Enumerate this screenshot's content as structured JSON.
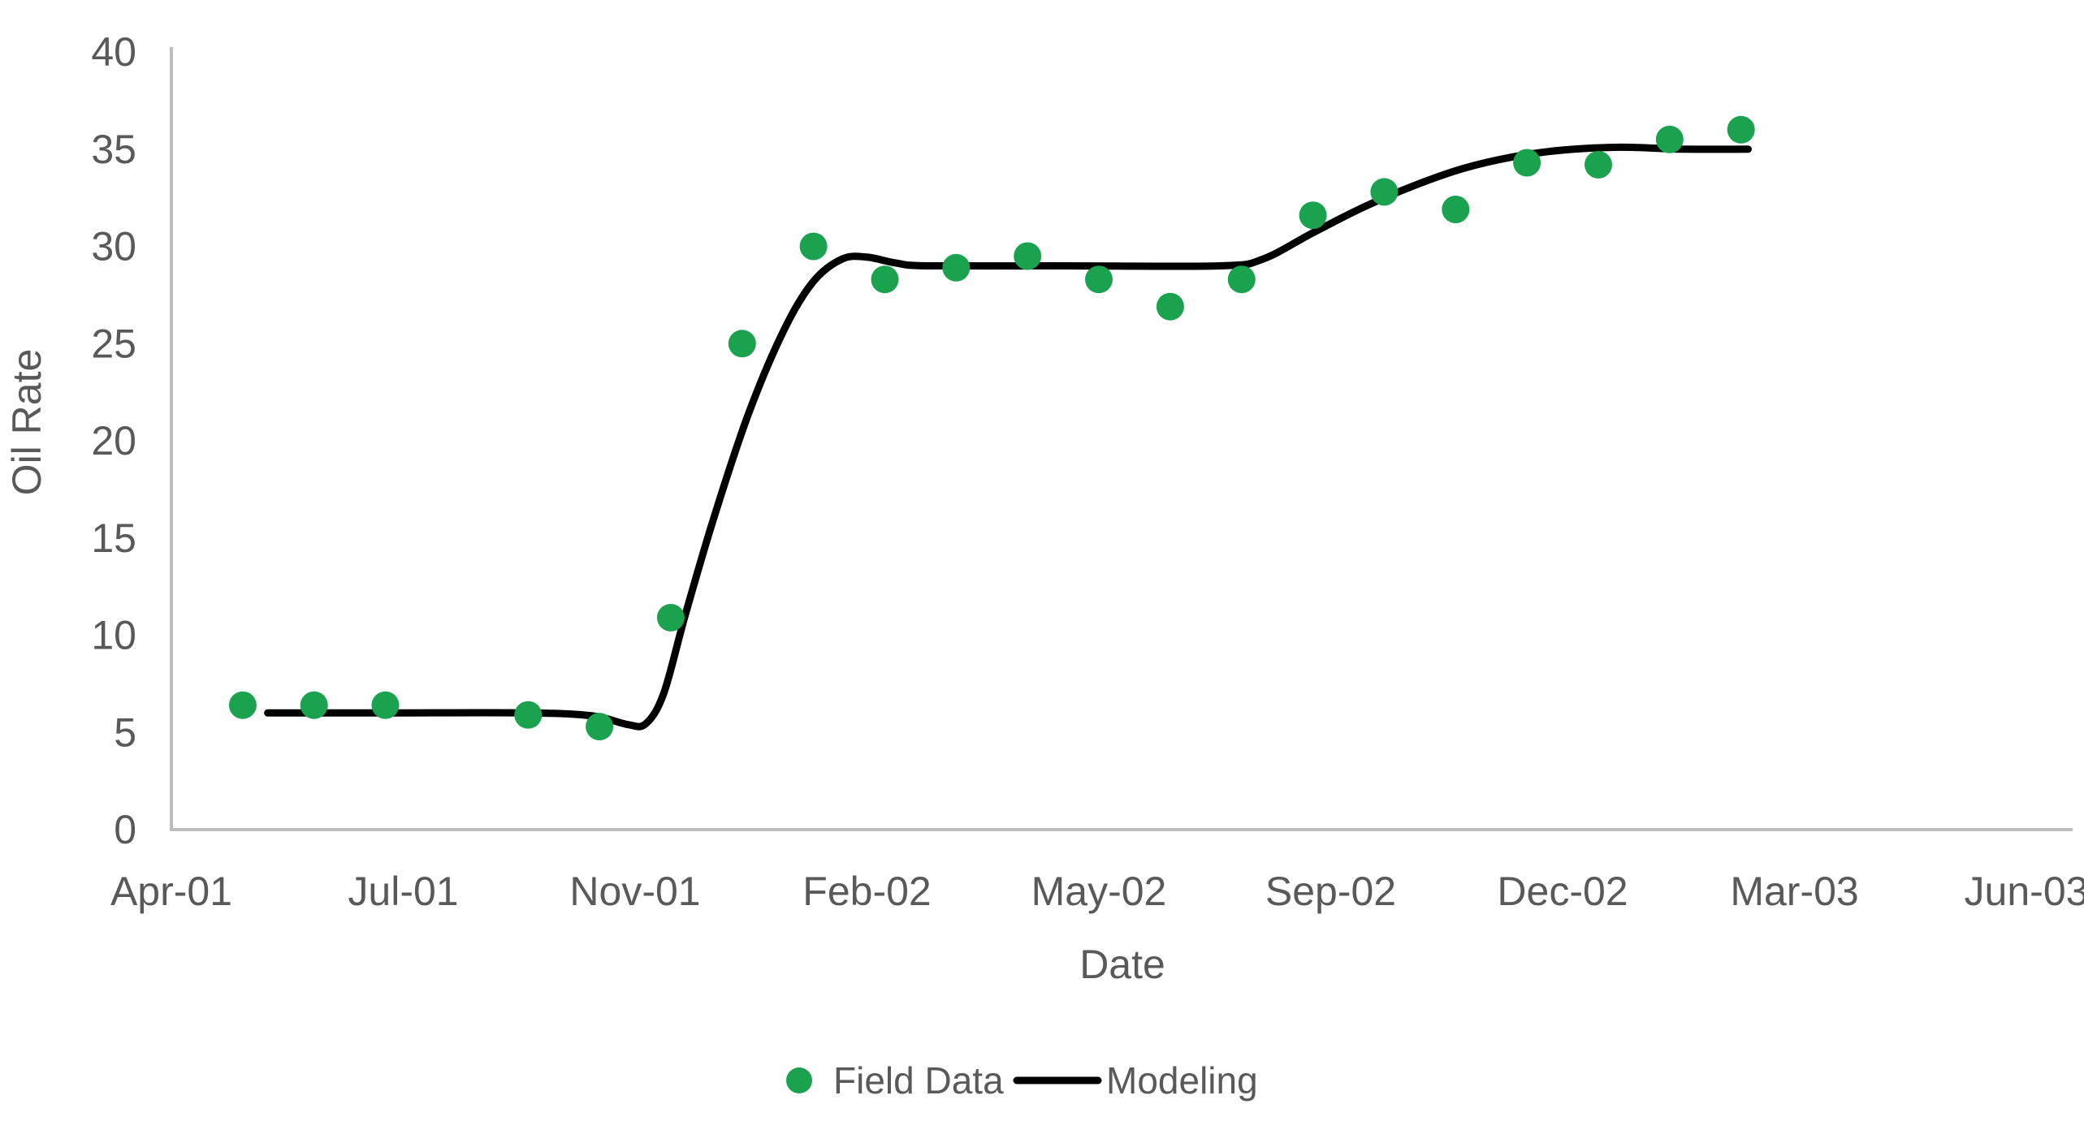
{
  "chart_data": {
    "type": "scatter",
    "title": "",
    "xlabel": "Date",
    "ylabel": "Oil Rate",
    "legend_position": "bottom",
    "grid": false,
    "colors": {
      "field_data": "#1aa24e",
      "modeling": "#000000",
      "axis_line": "#bdbdbd",
      "text": "#595959"
    },
    "x_axis": {
      "tick_labels": [
        "Apr-01",
        "Jul-01",
        "Nov-01",
        "Feb-02",
        "May-02",
        "Sep-02",
        "Dec-02",
        "Mar-03",
        "Jun-03"
      ],
      "tick_month_offsets": [
        0,
        3,
        7,
        10,
        13,
        17,
        20,
        23,
        26
      ]
    },
    "y_axis": {
      "min": 0,
      "max": 40,
      "tick_step": 5,
      "ticks": [
        0,
        5,
        10,
        15,
        20,
        25,
        30,
        35,
        40
      ]
    },
    "series": [
      {
        "name": "Field Data",
        "type": "scatter",
        "color": "#1aa24e",
        "points": [
          {
            "date": "May-01",
            "month": 1,
            "value": 6.4
          },
          {
            "date": "Jun-01",
            "month": 2,
            "value": 6.4
          },
          {
            "date": "Jul-01",
            "month": 3,
            "value": 6.4
          },
          {
            "date": "Sep-01",
            "month": 5,
            "value": 5.9
          },
          {
            "date": "Oct-01",
            "month": 6,
            "value": 5.3
          },
          {
            "date": "Nov-01",
            "month": 7,
            "value": 10.9
          },
          {
            "date": "Dec-01",
            "month": 8,
            "value": 25.0
          },
          {
            "date": "Jan-02",
            "month": 9,
            "value": 30.0
          },
          {
            "date": "Feb-02",
            "month": 10,
            "value": 28.3
          },
          {
            "date": "Mar-02",
            "month": 11,
            "value": 28.9
          },
          {
            "date": "Apr-02",
            "month": 12,
            "value": 29.5
          },
          {
            "date": "May-02",
            "month": 13,
            "value": 28.3
          },
          {
            "date": "Jun-02",
            "month": 14,
            "value": 26.9
          },
          {
            "date": "Jul-02",
            "month": 15,
            "value": 28.3
          },
          {
            "date": "Aug-02",
            "month": 16,
            "value": 31.6
          },
          {
            "date": "Sep-02",
            "month": 17,
            "value": 32.8
          },
          {
            "date": "Oct-02",
            "month": 18,
            "value": 31.9
          },
          {
            "date": "Nov-02",
            "month": 19,
            "value": 34.3
          },
          {
            "date": "Dec-02",
            "month": 20,
            "value": 34.2
          },
          {
            "date": "Jan-03",
            "month": 21,
            "value": 35.5
          },
          {
            "date": "Feb-03",
            "month": 22,
            "value": 36.0
          }
        ]
      },
      {
        "name": "Modeling",
        "type": "line",
        "color": "#000000",
        "control_points": [
          [
            1.35,
            6.0
          ],
          [
            3.0,
            6.0
          ],
          [
            5.0,
            6.0
          ],
          [
            5.9,
            5.85
          ],
          [
            6.4,
            5.4
          ],
          [
            6.65,
            5.45
          ],
          [
            6.9,
            7.0
          ],
          [
            7.2,
            11.0
          ],
          [
            7.6,
            16.0
          ],
          [
            8.1,
            21.5
          ],
          [
            8.6,
            25.8
          ],
          [
            9.0,
            28.2
          ],
          [
            9.4,
            29.35
          ],
          [
            9.75,
            29.45
          ],
          [
            10.15,
            29.15
          ],
          [
            10.6,
            29.0
          ],
          [
            12.5,
            29.0
          ],
          [
            14.7,
            29.0
          ],
          [
            15.3,
            29.35
          ],
          [
            16.0,
            30.7
          ],
          [
            16.7,
            32.0
          ],
          [
            17.4,
            33.1
          ],
          [
            18.1,
            34.0
          ],
          [
            18.8,
            34.6
          ],
          [
            19.5,
            34.95
          ],
          [
            20.3,
            35.1
          ],
          [
            21.2,
            35.0
          ],
          [
            22.1,
            35.0
          ]
        ]
      }
    ]
  }
}
